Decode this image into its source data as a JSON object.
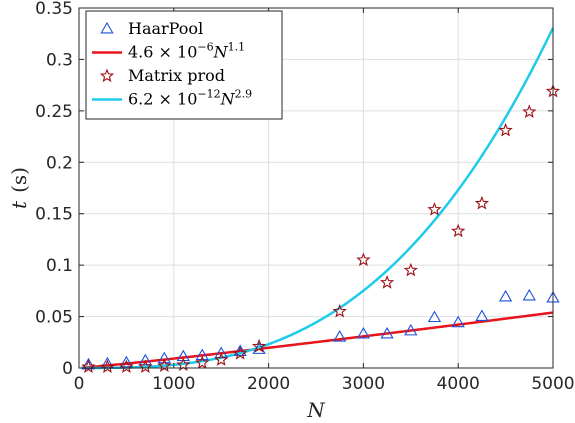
{
  "chart_data": {
    "type": "scatter",
    "xlabel": "N",
    "ylabel": {
      "var": "t",
      "unit": "(s)"
    },
    "xlim": [
      0,
      5000
    ],
    "ylim": [
      0,
      0.35
    ],
    "xticks": [
      0,
      1000,
      2000,
      3000,
      4000,
      5000
    ],
    "xtick_labels": [
      "0",
      "1000",
      "2000",
      "3000",
      "4000",
      "5000"
    ],
    "yticks": [
      0,
      0.05,
      0.1,
      0.15,
      0.2,
      0.25,
      0.3,
      0.35
    ],
    "ytick_labels": [
      "0",
      "0.05",
      "0.1",
      "0.15",
      "0.2",
      "0.25",
      "0.3",
      "0.35"
    ],
    "grid": true,
    "legend_position": "top-left",
    "legend": [
      {
        "label": "HaarPool",
        "marker": "triangle",
        "color": "#1f4fd8"
      },
      {
        "label_prefix": "4.6 × 10",
        "label_exp1": "−6",
        "label_var": "N",
        "label_exp2": "1.1",
        "line": true,
        "color": "#e8141b"
      },
      {
        "label": "Matrix prod",
        "marker": "star",
        "color": "#9b0f14"
      },
      {
        "label_prefix": "6.2 × 10",
        "label_exp1": "−12",
        "label_var": "N",
        "label_exp2": "2.9",
        "line": true,
        "color": "#1ecbea"
      }
    ],
    "series": [
      {
        "name": "HaarPool",
        "kind": "scatter",
        "marker": "triangle",
        "color": "#1f4fd8",
        "x": [
          100,
          300,
          500,
          700,
          900,
          1100,
          1300,
          1500,
          1700,
          1900,
          2750,
          3000,
          3250,
          3500,
          3750,
          4000,
          4250,
          4500,
          4750,
          5000
        ],
        "y": [
          0.003,
          0.004,
          0.005,
          0.007,
          0.009,
          0.011,
          0.012,
          0.014,
          0.016,
          0.018,
          0.03,
          0.033,
          0.033,
          0.036,
          0.049,
          0.044,
          0.05,
          0.069,
          0.07,
          0.068
        ]
      },
      {
        "name": "4.6e-6 N^1.1",
        "kind": "line",
        "color": "#e8141b",
        "coef": 4.6e-06,
        "power": 1.1
      },
      {
        "name": "Matrix prod",
        "kind": "scatter",
        "marker": "star",
        "color": "#9b0f14",
        "x": [
          100,
          300,
          500,
          700,
          900,
          1100,
          1300,
          1500,
          1700,
          1900,
          2750,
          3000,
          3250,
          3500,
          3750,
          4000,
          4250,
          4500,
          4750,
          5000
        ],
        "y": [
          0.001,
          0.001,
          0.001,
          0.001,
          0.002,
          0.003,
          0.005,
          0.008,
          0.014,
          0.021,
          0.055,
          0.105,
          0.083,
          0.095,
          0.154,
          0.133,
          0.16,
          0.231,
          0.249,
          0.269
        ]
      },
      {
        "name": "6.2e-12 N^2.9",
        "kind": "line",
        "color": "#1ecbea",
        "coef": 6.2e-12,
        "power": 2.9
      }
    ]
  }
}
